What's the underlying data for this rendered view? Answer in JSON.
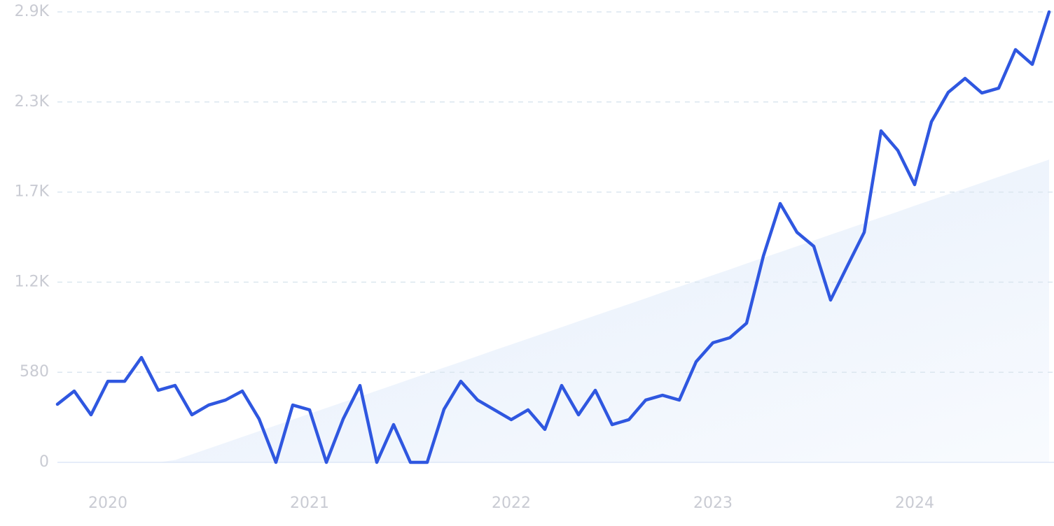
{
  "chart_data": {
    "type": "line",
    "categories": [
      null,
      null,
      null,
      "2020",
      null,
      null,
      null,
      null,
      null,
      null,
      null,
      null,
      null,
      null,
      null,
      "2021",
      null,
      null,
      null,
      null,
      null,
      null,
      null,
      null,
      null,
      null,
      null,
      "2022",
      null,
      null,
      null,
      null,
      null,
      null,
      null,
      null,
      null,
      null,
      null,
      "2023",
      null,
      null,
      null,
      null,
      null,
      null,
      null,
      null,
      null,
      null,
      null,
      "2024",
      null,
      null,
      null,
      null,
      null,
      null,
      null,
      null
    ],
    "series": [
      {
        "color": "#2f57e0",
        "values": [
          374,
          459,
          306,
          522,
          522,
          675,
          464,
          495,
          306,
          369,
          401,
          459,
          279,
          0,
          369,
          338,
          0,
          279,
          495,
          0,
          243,
          0,
          0,
          342,
          522,
          401,
          338,
          275,
          338,
          212,
          495,
          306,
          464,
          243,
          275,
          401,
          432,
          401,
          648,
          770,
          802,
          896,
          1328,
          1666,
          1481,
          1391,
          1045,
          1265,
          1481,
          2134,
          2008,
          1788,
          2193,
          2382,
          2472,
          2378,
          2409,
          2657,
          2562,
          2900
        ]
      }
    ],
    "trend": {
      "color": "#e3edfb",
      "values": [
        0,
        0,
        0,
        0,
        0,
        0,
        0,
        15,
        52,
        89,
        126,
        164,
        201,
        238,
        275,
        313,
        350,
        387,
        424,
        461,
        498,
        536,
        573,
        610,
        647,
        684,
        722,
        759,
        796,
        833,
        870,
        908,
        945,
        982,
        1019,
        1056,
        1094,
        1131,
        1168,
        1205,
        1242,
        1280,
        1317,
        1354,
        1391,
        1428,
        1466,
        1503,
        1540,
        1577,
        1614,
        1652,
        1689,
        1726,
        1763,
        1800,
        1838,
        1875,
        1912,
        1949
      ]
    },
    "ylim": [
      0,
      2900
    ],
    "yticks": [
      0,
      580,
      {
        "value": 1160,
        "label": "1.2K"
      },
      {
        "value": 1740,
        "label": "1.7K"
      },
      {
        "value": 2320,
        "label": "2.3K"
      },
      {
        "value": 2900,
        "label": "2.9K"
      }
    ],
    "grid": true
  }
}
